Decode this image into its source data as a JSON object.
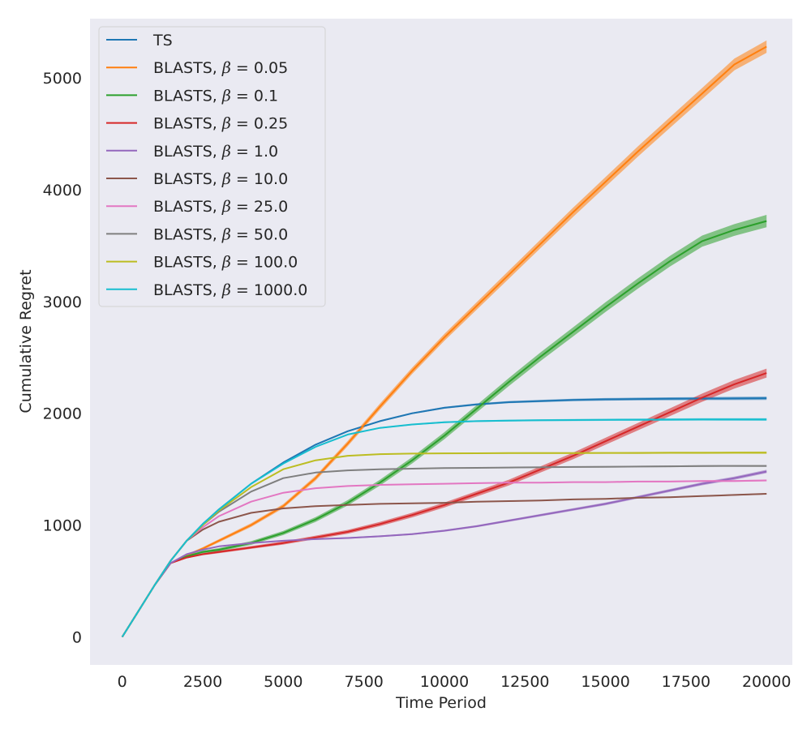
{
  "chart_data": {
    "type": "line",
    "title": "",
    "xlabel": "Time Period",
    "ylabel": "Cumulative Regret",
    "xlim": [
      -1000,
      20800
    ],
    "ylim": [
      -250,
      5530
    ],
    "xticks": [
      0,
      2500,
      5000,
      7500,
      10000,
      12500,
      15000,
      17500,
      20000
    ],
    "yticks": [
      0,
      1000,
      2000,
      3000,
      4000,
      5000
    ],
    "grid": false,
    "legend_position": "top-left",
    "x": [
      0,
      500,
      1000,
      1500,
      2000,
      2500,
      3000,
      4000,
      5000,
      6000,
      7000,
      8000,
      9000,
      10000,
      11000,
      12000,
      13000,
      14000,
      15000,
      16000,
      17000,
      18000,
      19000,
      20000
    ],
    "series": [
      {
        "name": "TS",
        "legend_prefix": "TS",
        "beta": "",
        "color": "#1f77b4",
        "band": 15,
        "values": [
          0,
          230,
          460,
          680,
          860,
          1010,
          1140,
          1370,
          1560,
          1720,
          1840,
          1930,
          2000,
          2050,
          2080,
          2100,
          2110,
          2120,
          2125,
          2128,
          2130,
          2132,
          2133,
          2135
        ]
      },
      {
        "name": "BLASTS, β = 0.05",
        "legend_prefix": "BLASTS, ",
        "beta": "0.05",
        "color": "#ff7f0e",
        "band": 55,
        "values": [
          0,
          230,
          460,
          660,
          730,
          790,
          860,
          1000,
          1170,
          1420,
          1730,
          2060,
          2380,
          2680,
          2960,
          3240,
          3520,
          3800,
          4070,
          4340,
          4600,
          4860,
          5120,
          5280
        ]
      },
      {
        "name": "BLASTS, β = 0.1",
        "legend_prefix": "BLASTS, ",
        "beta": "0.1",
        "color": "#2ca02c",
        "band": 55,
        "values": [
          0,
          230,
          460,
          660,
          720,
          760,
          780,
          840,
          930,
          1050,
          1200,
          1380,
          1580,
          1800,
          2040,
          2280,
          2510,
          2730,
          2950,
          3160,
          3360,
          3540,
          3640,
          3720
        ]
      },
      {
        "name": "BLASTS, β = 0.25",
        "legend_prefix": "BLASTS, ",
        "beta": "0.25",
        "color": "#d62728",
        "band": 40,
        "values": [
          0,
          230,
          460,
          660,
          710,
          740,
          760,
          800,
          840,
          890,
          940,
          1010,
          1090,
          1180,
          1280,
          1380,
          1500,
          1620,
          1750,
          1880,
          2010,
          2140,
          2260,
          2360
        ]
      },
      {
        "name": "BLASTS, β = 1.0",
        "legend_prefix": "BLASTS, ",
        "beta": "1.0",
        "color": "#9467bd",
        "band": 15,
        "values": [
          0,
          230,
          460,
          660,
          740,
          780,
          810,
          840,
          860,
          875,
          885,
          900,
          920,
          950,
          990,
          1040,
          1090,
          1140,
          1190,
          1250,
          1310,
          1370,
          1420,
          1480
        ]
      },
      {
        "name": "BLASTS, β = 10.0",
        "legend_prefix": "BLASTS, ",
        "beta": "10.0",
        "color": "#8c564b",
        "band": 6,
        "values": [
          0,
          230,
          460,
          680,
          860,
          960,
          1030,
          1110,
          1150,
          1170,
          1180,
          1190,
          1195,
          1200,
          1210,
          1215,
          1220,
          1230,
          1235,
          1245,
          1250,
          1260,
          1270,
          1280
        ]
      },
      {
        "name": "BLASTS, β = 25.0",
        "legend_prefix": "BLASTS, ",
        "beta": "25.0",
        "color": "#e377c2",
        "band": 8,
        "values": [
          0,
          230,
          460,
          680,
          860,
          980,
          1080,
          1210,
          1290,
          1330,
          1350,
          1360,
          1365,
          1370,
          1375,
          1380,
          1380,
          1385,
          1385,
          1390,
          1390,
          1395,
          1395,
          1400
        ]
      },
      {
        "name": "BLASTS, β = 50.0",
        "legend_prefix": "BLASTS, ",
        "beta": "50.0",
        "color": "#7f7f7f",
        "band": 8,
        "values": [
          0,
          230,
          460,
          680,
          860,
          1000,
          1120,
          1300,
          1420,
          1470,
          1490,
          1500,
          1505,
          1510,
          1512,
          1515,
          1517,
          1520,
          1522,
          1524,
          1526,
          1528,
          1530,
          1530
        ]
      },
      {
        "name": "BLASTS, β = 100.0",
        "legend_prefix": "BLASTS, ",
        "beta": "100.0",
        "color": "#bcbd22",
        "band": 10,
        "values": [
          0,
          230,
          460,
          680,
          860,
          1000,
          1130,
          1340,
          1500,
          1580,
          1620,
          1635,
          1640,
          1642,
          1643,
          1644,
          1645,
          1645,
          1646,
          1646,
          1647,
          1647,
          1648,
          1648
        ]
      },
      {
        "name": "BLASTS, β = 1000.0",
        "legend_prefix": "BLASTS, ",
        "beta": "1000.0",
        "color": "#17becf",
        "band": 12,
        "values": [
          0,
          230,
          460,
          680,
          860,
          1010,
          1140,
          1370,
          1550,
          1700,
          1810,
          1870,
          1900,
          1920,
          1930,
          1935,
          1938,
          1940,
          1942,
          1943,
          1944,
          1945,
          1945,
          1945
        ]
      }
    ]
  }
}
